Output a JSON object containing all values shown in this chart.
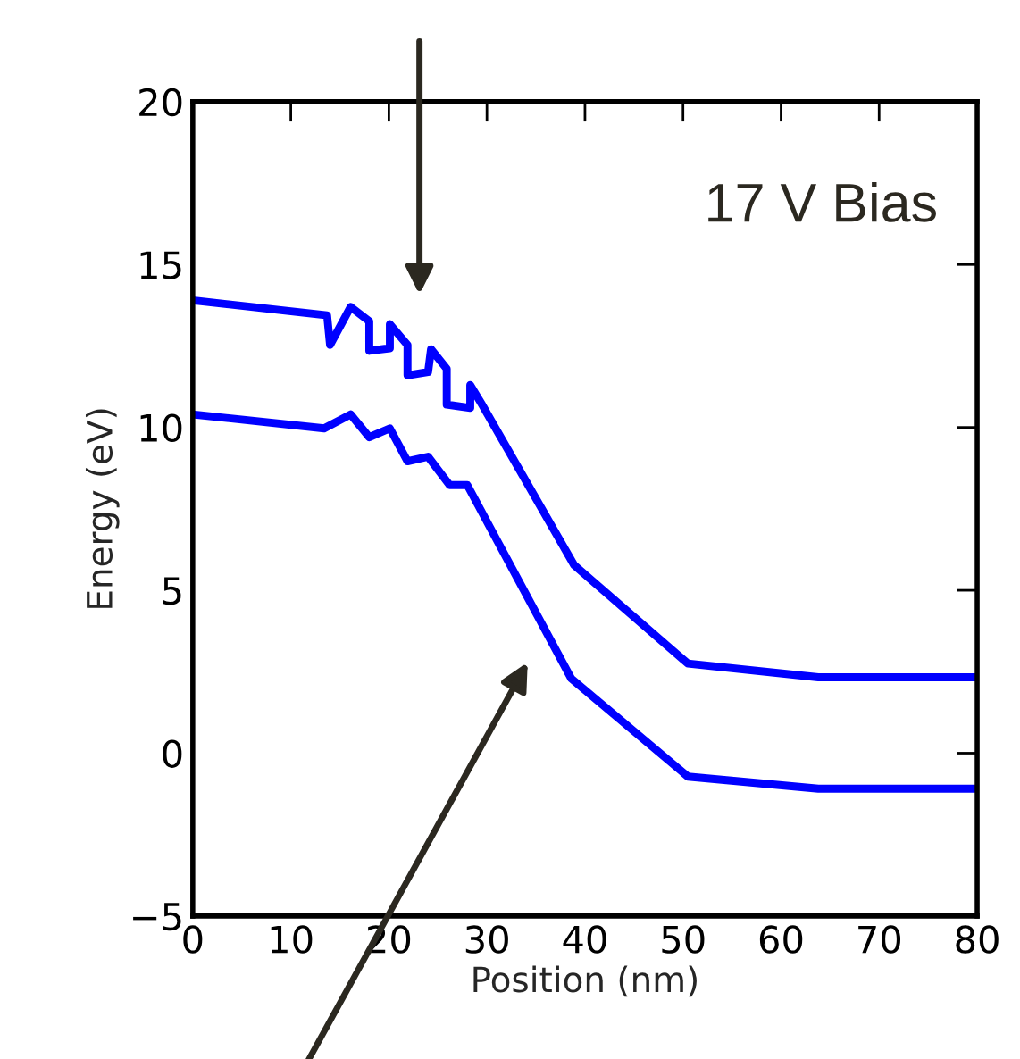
{
  "chart_data": {
    "type": "line",
    "xlabel": "Position (nm)",
    "ylabel": "Energy (eV)",
    "annotations": [
      "17 V Bias"
    ],
    "xlim": [
      0,
      80
    ],
    "ylim": [
      -5,
      20
    ],
    "xticks": [
      0,
      10,
      20,
      30,
      40,
      50,
      60,
      70,
      80
    ],
    "yticks": [
      {
        "value": -5,
        "label": "−5"
      },
      0,
      5,
      10,
      15,
      20
    ],
    "grid": false,
    "legend": false,
    "marker": "none",
    "line_style": "solid",
    "series": [
      {
        "color": "#0000ff",
        "x": [
          0,
          13.7,
          14.0,
          16.1,
          18.0,
          18.0,
          20.1,
          20.1,
          21.9,
          21.9,
          24.0,
          24.3,
          25.9,
          25.9,
          28.3,
          28.3,
          29.5,
          38.9,
          50.5,
          63.8,
          80
        ],
        "values": [
          13.9,
          13.44,
          12.53,
          13.7,
          13.26,
          12.35,
          12.43,
          13.17,
          12.53,
          11.6,
          11.7,
          12.4,
          11.8,
          10.7,
          10.6,
          11.3,
          10.7,
          5.77,
          2.75,
          2.33,
          2.33
        ]
      },
      {
        "color": "#0000ff",
        "x": [
          0,
          13.4,
          16.1,
          18.0,
          20.1,
          21.9,
          24.0,
          26.2,
          28.0,
          38.6,
          50.5,
          63.8,
          80
        ],
        "values": [
          10.4,
          9.97,
          10.4,
          9.7,
          9.97,
          8.96,
          9.1,
          8.23,
          8.23,
          2.29,
          -0.72,
          -1.09,
          -1.09
        ]
      }
    ]
  }
}
